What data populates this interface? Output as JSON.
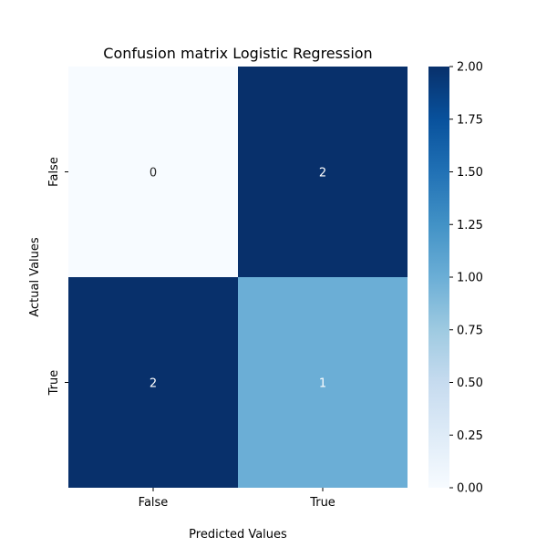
{
  "chart_data": {
    "type": "heatmap",
    "title": "Confusion matrix Logistic Regression",
    "xlabel": "Predicted Values",
    "ylabel": "Actual Values",
    "x_categories": [
      "False",
      "True"
    ],
    "y_categories": [
      "False",
      "True"
    ],
    "values": [
      [
        0,
        2
      ],
      [
        2,
        1
      ]
    ],
    "annotations": true,
    "colormap": "Blues",
    "colormap_stops": [
      "#f7fbff",
      "#deebf7",
      "#c6dbef",
      "#9ecae1",
      "#6baed6",
      "#4292c6",
      "#2171b5",
      "#08519c",
      "#08306b"
    ],
    "colorbar": {
      "range": [
        0,
        2
      ],
      "ticks": [
        "0.00",
        "0.25",
        "0.50",
        "0.75",
        "1.00",
        "1.25",
        "1.50",
        "1.75",
        "2.00"
      ]
    }
  }
}
